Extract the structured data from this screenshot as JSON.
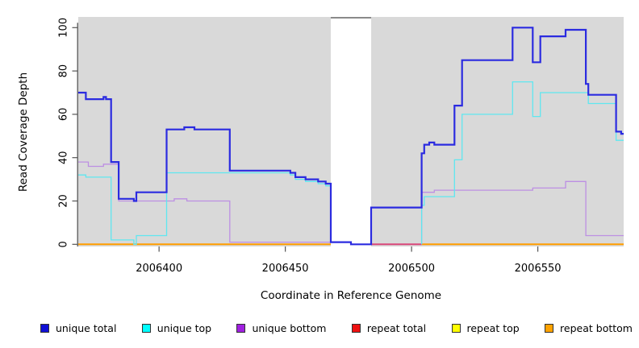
{
  "chart_data": {
    "type": "line",
    "style": "step-after",
    "title": "",
    "xlabel": "Coordinate in Reference Genome",
    "ylabel": "Read Coverage Depth",
    "xlim": [
      2006368,
      2006584
    ],
    "ylim": [
      0,
      100
    ],
    "x_ticks": [
      "2006400",
      "2006450",
      "2006500",
      "2006550"
    ],
    "x_tick_values": [
      2006400,
      2006450,
      2006500,
      2006550
    ],
    "y_ticks": [
      "0",
      "20",
      "40",
      "60",
      "80",
      "100"
    ],
    "y_tick_values": [
      0,
      20,
      40,
      60,
      80,
      100
    ],
    "grid": false,
    "plot_bg": "#d9d9d9",
    "legend_position": "bottom",
    "masked_region": {
      "x0": 2006468,
      "x1": 2006484,
      "color": "#ffffff",
      "top_border_color": "#8a8a8a"
    },
    "series": [
      {
        "name": "repeat top",
        "color": "#ffff00",
        "line_width": 2,
        "segments": []
      },
      {
        "name": "repeat bottom",
        "color": "#ff9d00",
        "line_width": 2,
        "segments": [
          [
            [
              2006368,
              0
            ],
            [
              2006468,
              0
            ]
          ],
          [
            [
              2006504,
              0
            ],
            [
              2006584,
              0
            ]
          ]
        ]
      },
      {
        "name": "repeat total",
        "color": "#d9487a",
        "line_width": 2,
        "segments": [
          [
            [
              2006484,
              0
            ],
            [
              2006504,
              0
            ]
          ]
        ]
      },
      {
        "name": "unique bottom",
        "color": "#bd8fe3",
        "line_width": 1.3,
        "segments": [
          [
            [
              2006368,
              38
            ],
            [
              2006372,
              36
            ],
            [
              2006378,
              37
            ],
            [
              2006384,
              20
            ],
            [
              2006406,
              21
            ],
            [
              2006411,
              20
            ],
            [
              2006428,
              1
            ],
            [
              2006468,
              1
            ]
          ],
          [
            [
              2006504,
              0
            ],
            [
              2006504,
              24
            ],
            [
              2006509,
              25
            ],
            [
              2006548,
              26
            ],
            [
              2006561,
              29
            ],
            [
              2006569,
              4
            ],
            [
              2006584,
              4
            ]
          ]
        ]
      },
      {
        "name": "unique top",
        "color": "#5fe7f0",
        "line_width": 1.3,
        "segments": [
          [
            [
              2006368,
              32
            ],
            [
              2006371,
              31
            ],
            [
              2006381,
              2
            ],
            [
              2006390,
              0
            ],
            [
              2006391,
              4
            ],
            [
              2006403,
              33
            ],
            [
              2006452,
              32
            ],
            [
              2006454,
              30
            ],
            [
              2006458,
              29
            ],
            [
              2006463,
              28
            ],
            [
              2006466,
              27
            ],
            [
              2006468,
              27
            ]
          ],
          [
            [
              2006504,
              0
            ],
            [
              2006504,
              18
            ],
            [
              2006505,
              22
            ],
            [
              2006517,
              39
            ],
            [
              2006520,
              60
            ],
            [
              2006540,
              75
            ],
            [
              2006548,
              59
            ],
            [
              2006551,
              70
            ],
            [
              2006570,
              65
            ],
            [
              2006581,
              48
            ],
            [
              2006584,
              48
            ]
          ]
        ]
      },
      {
        "name": "unique total",
        "color": "#2b2be0",
        "line_width": 2.2,
        "segments": [
          [
            [
              2006368,
              70
            ],
            [
              2006371,
              67
            ],
            [
              2006378,
              68
            ],
            [
              2006379,
              67
            ],
            [
              2006381,
              38
            ],
            [
              2006384,
              21
            ],
            [
              2006390,
              20
            ],
            [
              2006391,
              24
            ],
            [
              2006403,
              53
            ],
            [
              2006410,
              54
            ],
            [
              2006414,
              53
            ],
            [
              2006428,
              34
            ],
            [
              2006452,
              33
            ],
            [
              2006454,
              31
            ],
            [
              2006458,
              30
            ],
            [
              2006463,
              29
            ],
            [
              2006466,
              28
            ],
            [
              2006468,
              1
            ],
            [
              2006476,
              0
            ],
            [
              2006484,
              17
            ],
            [
              2006504,
              42
            ],
            [
              2006505,
              46
            ],
            [
              2006507,
              47
            ],
            [
              2006509,
              46
            ],
            [
              2006517,
              64
            ],
            [
              2006520,
              85
            ],
            [
              2006540,
              100
            ],
            [
              2006548,
              84
            ],
            [
              2006551,
              96
            ],
            [
              2006561,
              99
            ],
            [
              2006569,
              74
            ],
            [
              2006570,
              69
            ],
            [
              2006581,
              52
            ],
            [
              2006583,
              51
            ],
            [
              2006584,
              51
            ]
          ]
        ]
      }
    ]
  },
  "legend": {
    "items": [
      {
        "label": "unique total",
        "color": "#0f0fd6"
      },
      {
        "label": "unique top",
        "color": "#00ffff"
      },
      {
        "label": "unique bottom",
        "color": "#a020e0"
      },
      {
        "label": "repeat total",
        "color": "#ee1111"
      },
      {
        "label": "repeat top",
        "color": "#ffff00"
      },
      {
        "label": "repeat bottom",
        "color": "#ffa200"
      }
    ]
  }
}
